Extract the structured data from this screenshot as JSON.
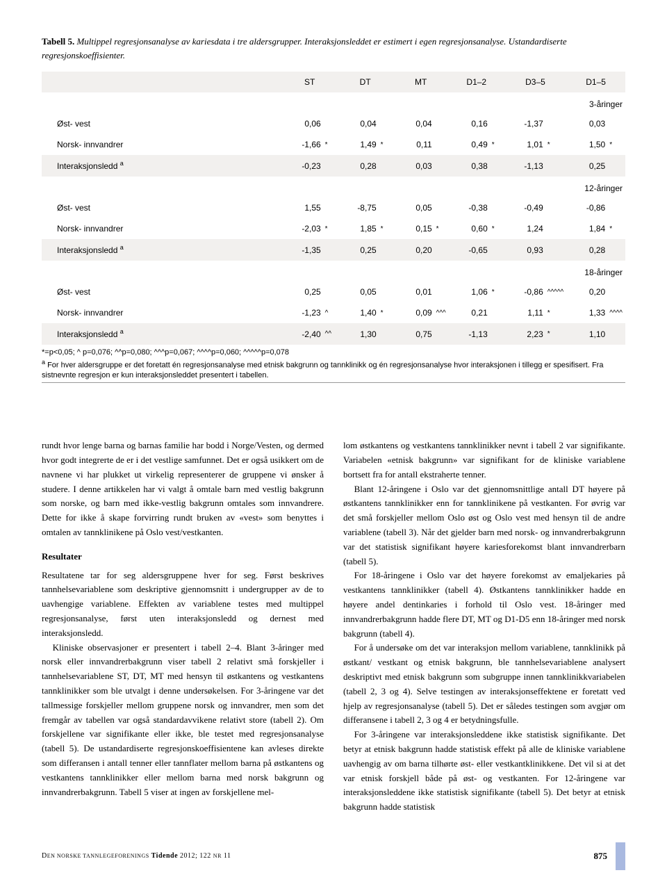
{
  "caption": {
    "label": "Tabell 5.",
    "text": "Multippel regresjonsanalyse av kariesdata i tre aldersgrupper. Interaksjonsleddet er estimert i egen regresjonsanalyse. Ustandardiserte regresjonskoeffisienter."
  },
  "table": {
    "columns": [
      "",
      "ST",
      "DT",
      "MT",
      "D1–2",
      "D3–5",
      "D1–5"
    ],
    "groups": [
      {
        "name": "3-åringer",
        "rows": [
          {
            "label": "Øst- vest",
            "alt": false,
            "cells": [
              [
                "0,06",
                ""
              ],
              [
                "0,04",
                ""
              ],
              [
                "0,04",
                ""
              ],
              [
                "0,16",
                ""
              ],
              [
                "-1,37",
                ""
              ],
              [
                "0,03",
                ""
              ]
            ]
          },
          {
            "label": "Norsk- innvandrer",
            "alt": false,
            "cells": [
              [
                "-1,66",
                "*"
              ],
              [
                "1,49",
                "*"
              ],
              [
                "0,11",
                ""
              ],
              [
                "0,49",
                "*"
              ],
              [
                "1,01",
                "*"
              ],
              [
                "1,50",
                "*"
              ]
            ]
          },
          {
            "label": "Interaksjonsledd <sup>a</sup>",
            "alt": true,
            "cells": [
              [
                "-0,23",
                ""
              ],
              [
                "0,28",
                ""
              ],
              [
                "0,03",
                ""
              ],
              [
                "0,38",
                ""
              ],
              [
                "-1,13",
                ""
              ],
              [
                "0,25",
                ""
              ]
            ]
          }
        ]
      },
      {
        "name": "12-åringer",
        "rows": [
          {
            "label": "Øst- vest",
            "alt": false,
            "cells": [
              [
                "1,55",
                ""
              ],
              [
                "-8,75",
                ""
              ],
              [
                "0,05",
                ""
              ],
              [
                "-0,38",
                ""
              ],
              [
                "-0,49",
                ""
              ],
              [
                "-0,86",
                ""
              ]
            ]
          },
          {
            "label": "Norsk- innvandrer",
            "alt": false,
            "cells": [
              [
                "-2,03",
                "*"
              ],
              [
                "1,85",
                "*"
              ],
              [
                "0,15",
                "*"
              ],
              [
                "0,60",
                "*"
              ],
              [
                "1,24",
                ""
              ],
              [
                "1,84",
                "*"
              ]
            ]
          },
          {
            "label": "Interaksjonsledd <sup>a</sup>",
            "alt": true,
            "cells": [
              [
                "-1,35",
                ""
              ],
              [
                "0,25",
                ""
              ],
              [
                "0,20",
                ""
              ],
              [
                "-0,65",
                ""
              ],
              [
                "0,93",
                ""
              ],
              [
                "0,28",
                ""
              ]
            ]
          }
        ]
      },
      {
        "name": "18-åringer",
        "rows": [
          {
            "label": "Øst- vest",
            "alt": false,
            "cells": [
              [
                "0,25",
                ""
              ],
              [
                "0,05",
                ""
              ],
              [
                "0,01",
                ""
              ],
              [
                "1,06",
                "*"
              ],
              [
                "-0,86",
                "^^^^^"
              ],
              [
                "0,20",
                ""
              ]
            ]
          },
          {
            "label": "Norsk- innvandrer",
            "alt": false,
            "cells": [
              [
                "-1,23",
                "^"
              ],
              [
                "1,40",
                "*"
              ],
              [
                "0,09",
                "^^^"
              ],
              [
                "0,21",
                ""
              ],
              [
                "1,11",
                "*"
              ],
              [
                "1,33",
                "^^^^"
              ]
            ]
          },
          {
            "label": "Interaksjonsledd <sup>a</sup>",
            "alt": true,
            "cells": [
              [
                "-2,40",
                "^^"
              ],
              [
                "1,30",
                ""
              ],
              [
                "0,75",
                ""
              ],
              [
                "-1,13",
                ""
              ],
              [
                "2,23",
                "*"
              ],
              [
                "1,10",
                ""
              ]
            ]
          }
        ]
      }
    ]
  },
  "footnotes": {
    "line1": "*=p<0,05; ^ p=0,076; ^^p=0,080; ^^^p=0,067;  ^^^^p=0,060; ^^^^^p=0,078",
    "line2": "a For hver aldersgruppe er det foretatt én regresjonsanalyse med etnisk bakgrunn og tannklinikk og én regresjonsanalyse hvor interaksjonen i tillegg er spesifisert. Fra sistnevnte regresjon er kun interaksjonsleddet presentert i tabellen."
  },
  "body": {
    "p1": "rundt hvor lenge barna og barnas familie har bodd i Norge/Vesten, og dermed hvor godt integrerte de er i det vestlige samfunnet. Det er også usikkert om de navnene vi har plukket ut virkelig representerer de gruppene vi ønsker å studere. I denne artikkelen har vi valgt å omtale barn med vestlig bakgrunn som norske, og barn med ikke-vestlig bakgrunn omtales som innvandrere. Dette for ikke å skape forvirring rundt bruken av «vest» som benyttes i omtalen av tannklinikene på Oslo vest/vestkanten.",
    "h1": "Resultater",
    "p2": "Resultatene tar for seg aldersgruppene hver for seg. Først beskrives tannhelsevariablene som deskriptive gjennomsnitt i undergrupper av de to uavhengige variablene. Effekten av variablene testes med multippel regresjonsanalyse, først uten interaksjonsledd og dernest med interaksjonsledd.",
    "p3": "Kliniske observasjoner er presentert i tabell 2–4. Blant 3-åringer med norsk eller innvandrerbakgrunn viser tabell 2 relativt små forskjeller i tannhelsevariablene ST, DT, MT med hensyn til østkantens og vestkantens tannklinikker som ble utvalgt i denne undersøkelsen. For 3-åringene var det tallmessige forskjeller mellom gruppene norsk og innvandrer, men som det fremgår av tabellen var også standardavvikene relativt store (tabell 2). Om forskjellene var signifikante eller ikke, ble testet med regresjonsanalyse (tabell 5). De ustandardiserte regresjonskoeffisientene kan avleses direkte som differansen i antall tenner eller tannflater mellom barna på østkantens og vestkantens tannklinikker eller mellom barna med norsk bakgrunn og innvandrerbakgrunn. Tabell 5 viser at ingen av forskjellene mel-",
    "p4": "lom østkantens og vestkantens tannklinikker nevnt i tabell 2 var signifikante. Variabelen «etnisk bakgrunn» var signifikant for de kliniske variablene bortsett fra for antall ekstraherte tenner.",
    "p5": "Blant 12-åringene i Oslo var det gjennomsnittlige antall DT høyere på østkantens tannklinikker enn for tannklinikene på vestkanten. For øvrig var det små forskjeller mellom Oslo øst og Oslo vest med hensyn til de andre variablene (tabell 3). Når det gjelder barn med norsk- og innvandrerbakgrunn var det statistisk signifikant høyere kariesforekomst blant innvandrerbarn (tabell 5).",
    "p6": "For 18-åringene i Oslo var det høyere forekomst av emaljekaries på vestkantens tannklinikker (tabell 4). Østkantens tannklinikker hadde en høyere andel dentinkaries i forhold til Oslo vest. 18-åringer med innvandrerbakgrunn hadde flere DT, MT og D1-D5 enn 18-åringer med norsk bakgrunn (tabell 4).",
    "p7": "For å undersøke om det var interaksjon mellom variablene, tannklinikk på østkant/ vestkant og etnisk bakgrunn, ble tannhelsevariablene analysert deskriptivt med etnisk bakgrunn som subgruppe innen tannklinikkvariabelen (tabell 2, 3 og 4). Selve testingen av interaksjonseffektene er foretatt ved hjelp av regresjonsanalyse (tabell 5). Det er således testingen som avgjør om differansene i tabell 2, 3 og 4 er betydningsfulle.",
    "p8": "For 3-åringene var interaksjonsleddene ikke statistisk signifikante. Det betyr at etnisk bakgrunn hadde statistisk effekt på alle de kliniske variablene uavhengig av om barna tilhørte øst- eller vestkantklinikkene. Det vil si at det var etnisk forskjell både på øst- og vestkanten. For 12-åringene var interaksjonsleddene ikke statistisk signifikante (tabell 5). Det betyr at etnisk bakgrunn hadde statistisk"
  },
  "footer": {
    "left_prefix": "D",
    "left_small": "EN NORSKE TANNLEGEFORENINGS",
    "tidende": "Tidende",
    "year": "2012; 122",
    "nr": "NR",
    "issue": "11",
    "page": "875"
  },
  "colors": {
    "row_alt": "#f2f0ee",
    "tab": "#a9b9e0",
    "text": "#000000",
    "bg": "#ffffff"
  }
}
